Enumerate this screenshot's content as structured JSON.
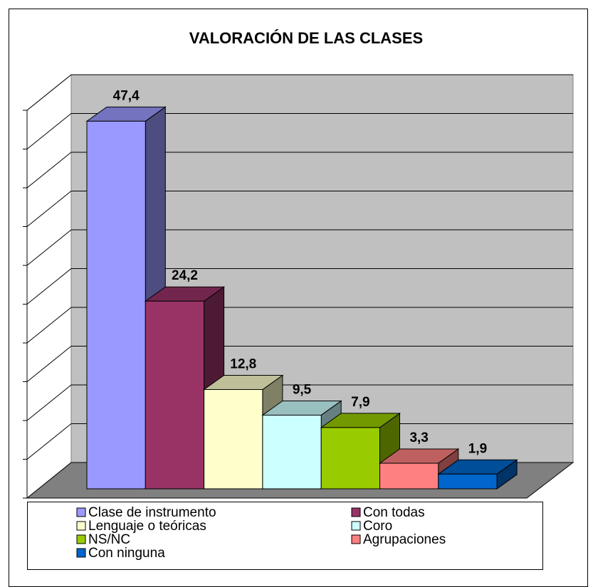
{
  "chart_data": {
    "type": "bar3d",
    "title": "VALORACIÓN DE LAS CLASES",
    "categories": [
      "Clase de instrumento",
      "Con todas",
      "Lenguaje o teóricas",
      "Coro",
      "NS/NC",
      "Agrupaciones",
      "Con ninguna"
    ],
    "values": [
      47.4,
      24.2,
      12.8,
      9.5,
      7.9,
      3.3,
      1.9
    ],
    "value_labels": [
      "47,4",
      "24,2",
      "12,8",
      "9,5",
      "7,9",
      "3,3",
      "1,9"
    ],
    "colors": [
      "#9999ff",
      "#993366",
      "#ffffcc",
      "#ccffff",
      "#99cc00",
      "#ff8080",
      "#0066cc"
    ],
    "ylim": [
      0,
      50
    ],
    "yticks": [
      0,
      5,
      10,
      15,
      20,
      25,
      30,
      35,
      40,
      45,
      50
    ],
    "grid": true
  }
}
